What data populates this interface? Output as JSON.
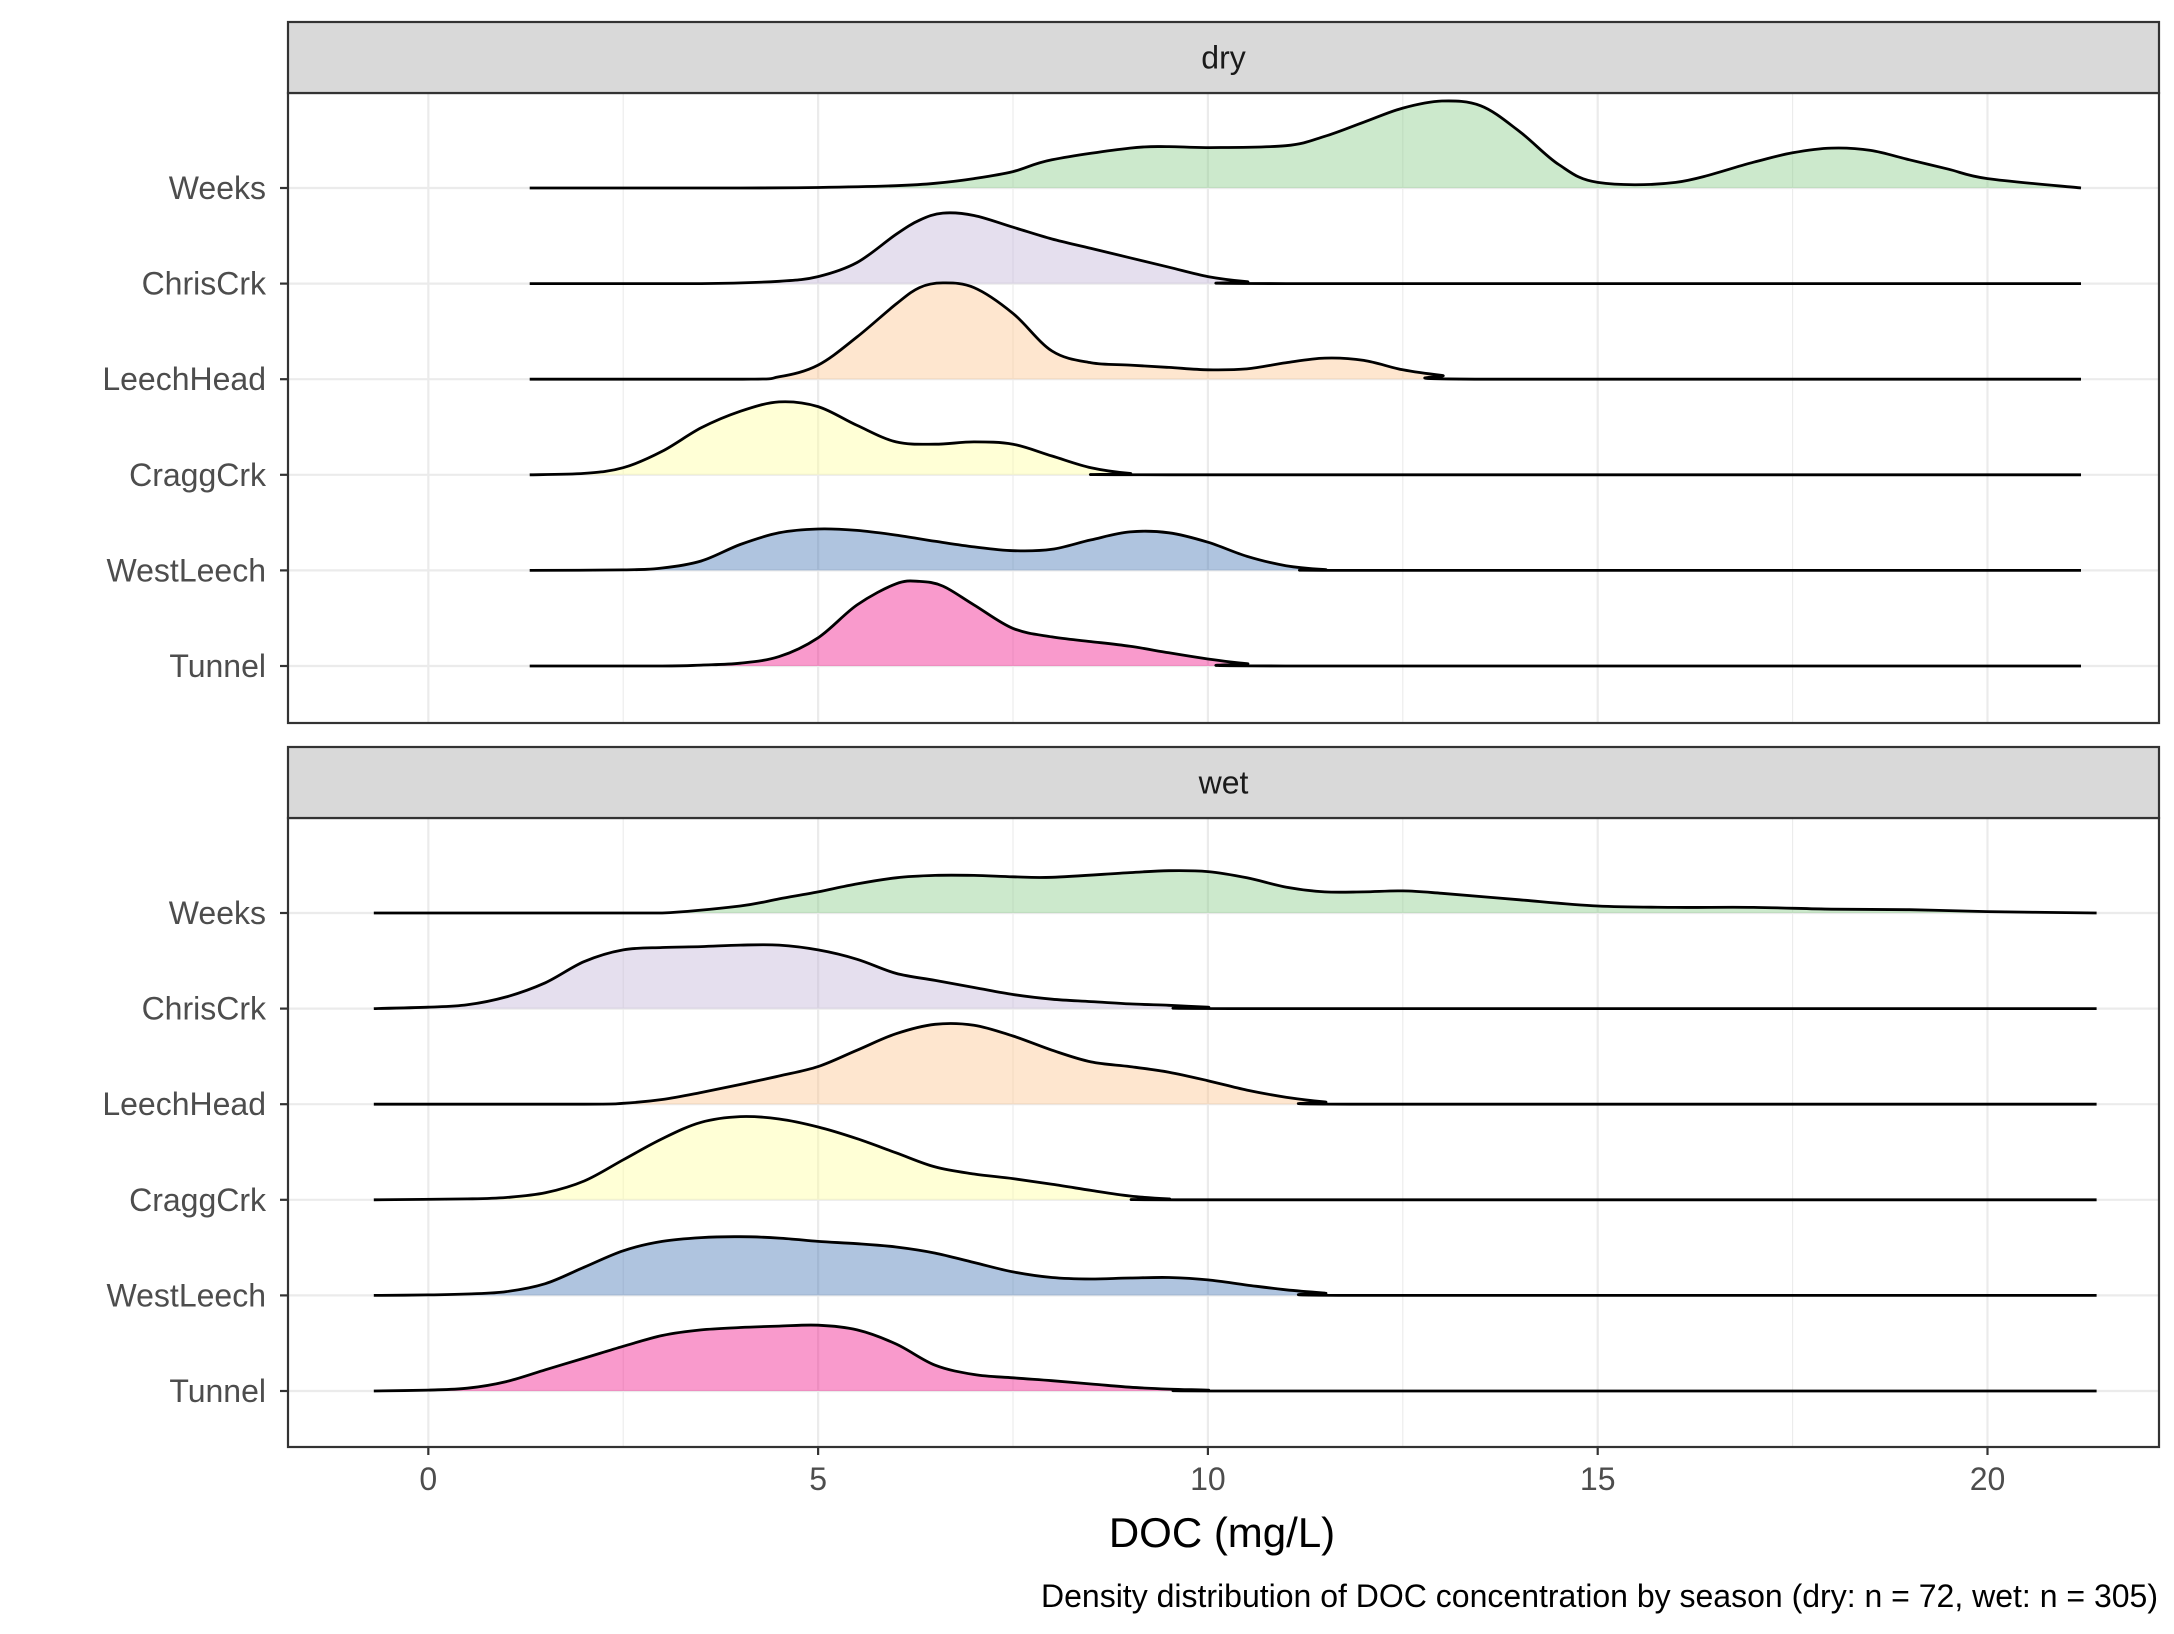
{
  "chart_data": {
    "type": "ridgeline-density",
    "xlabel": "DOC (mg/L)",
    "caption": "Density distribution of DOC concentration by season (dry: n = 72, wet: n = 305)",
    "xlim": [
      -1.8,
      22.2
    ],
    "x_ticks": [
      0,
      5,
      10,
      15,
      20
    ],
    "grid": true,
    "categories": [
      "Weeks",
      "ChrisCrk",
      "LeechHead",
      "CraggCrk",
      "WestLeech",
      "Tunnel"
    ],
    "colors": {
      "Weeks": "#7fc97f",
      "ChrisCrk": "#beaed4",
      "LeechHead": "#fdc086",
      "CraggCrk": "#ffff99",
      "WestLeech": "#386cb0",
      "Tunnel": "#f0027f"
    },
    "fill_opacity": 0.4,
    "ridge_scale_units": "height relative to row spacing",
    "panels": [
      {
        "label": "dry",
        "x_range": [
          1.3,
          21.2
        ],
        "series": [
          {
            "name": "Weeks",
            "x": [
              1.3,
              4,
              5,
              6,
              6.5,
              7,
              7.5,
              8,
              9,
              9.5,
              10,
              11,
              11.5,
              12,
              12.5,
              13,
              13.5,
              14,
              14.5,
              15,
              16,
              17,
              17.5,
              18,
              18.5,
              19,
              19.5,
              20,
              21.2
            ],
            "y": [
              0,
              0,
              0.01,
              0.05,
              0.1,
              0.2,
              0.35,
              0.6,
              0.85,
              0.88,
              0.86,
              0.9,
              1.1,
              1.4,
              1.7,
              1.85,
              1.75,
              1.2,
              0.5,
              0.12,
              0.12,
              0.55,
              0.75,
              0.85,
              0.8,
              0.6,
              0.4,
              0.2,
              0
            ]
          },
          {
            "name": "ChrisCrk",
            "x": [
              1.3,
              3.5,
              4.5,
              5,
              5.5,
              6,
              6.3,
              6.6,
              7,
              7.5,
              8,
              8.5,
              9,
              9.5,
              10,
              10.5,
              11,
              21.2
            ],
            "y": [
              0,
              0,
              0.05,
              0.15,
              0.45,
              1.05,
              1.35,
              1.5,
              1.45,
              1.2,
              0.95,
              0.75,
              0.55,
              0.35,
              0.15,
              0.04,
              0,
              0
            ]
          },
          {
            "name": "LeechHead",
            "x": [
              1.3,
              4,
              4.5,
              5,
              5.5,
              6,
              6.3,
              6.6,
              7,
              7.5,
              8,
              8.5,
              9,
              9.5,
              10,
              10.5,
              11,
              11.5,
              12,
              12.5,
              13,
              13.5,
              21.2
            ],
            "y": [
              0,
              0,
              0.05,
              0.3,
              0.9,
              1.6,
              1.95,
              2.05,
              1.95,
              1.4,
              0.6,
              0.35,
              0.3,
              0.25,
              0.2,
              0.22,
              0.35,
              0.45,
              0.4,
              0.2,
              0.08,
              0,
              0
            ]
          },
          {
            "name": "CraggCrk",
            "x": [
              1.3,
              2,
              2.5,
              3,
              3.5,
              4,
              4.5,
              5,
              5.5,
              6,
              6.5,
              7,
              7.5,
              8,
              8.5,
              9,
              9.5,
              21.2
            ],
            "y": [
              0,
              0.03,
              0.15,
              0.5,
              1.0,
              1.35,
              1.55,
              1.45,
              1.05,
              0.7,
              0.65,
              0.7,
              0.65,
              0.4,
              0.15,
              0.03,
              0,
              0
            ]
          },
          {
            "name": "WestLeech",
            "x": [
              1.3,
              2.5,
              3,
              3.5,
              4,
              4.5,
              5,
              5.5,
              6,
              6.5,
              7,
              7.5,
              8,
              8.5,
              9,
              9.5,
              10,
              10.5,
              11,
              11.5,
              12,
              21.2
            ],
            "y": [
              0,
              0.01,
              0.05,
              0.2,
              0.55,
              0.8,
              0.88,
              0.85,
              0.75,
              0.62,
              0.5,
              0.42,
              0.45,
              0.65,
              0.82,
              0.8,
              0.6,
              0.3,
              0.1,
              0.02,
              0,
              0
            ]
          },
          {
            "name": "Tunnel",
            "x": [
              1.3,
              3,
              3.5,
              4,
              4.5,
              5,
              5.5,
              6,
              6.3,
              6.6,
              7,
              7.5,
              8,
              8.5,
              9,
              9.5,
              10,
              10.5,
              11,
              21.2
            ],
            "y": [
              0,
              0,
              0.02,
              0.06,
              0.2,
              0.6,
              1.3,
              1.75,
              1.8,
              1.7,
              1.3,
              0.8,
              0.62,
              0.52,
              0.42,
              0.28,
              0.15,
              0.05,
              0,
              0
            ]
          }
        ]
      },
      {
        "label": "wet",
        "x_range": [
          -0.7,
          21.4
        ],
        "series": [
          {
            "name": "Weeks",
            "x": [
              -0.7,
              2,
              3,
              4,
              4.5,
              5,
              5.5,
              6,
              6.5,
              7,
              7.5,
              8,
              9,
              9.5,
              10,
              10.5,
              11,
              11.5,
              12,
              12.5,
              13,
              14,
              15,
              16,
              17,
              18,
              19,
              20,
              21.4
            ],
            "y": [
              0,
              0,
              0,
              0.15,
              0.3,
              0.45,
              0.62,
              0.75,
              0.8,
              0.8,
              0.77,
              0.76,
              0.86,
              0.9,
              0.88,
              0.75,
              0.55,
              0.45,
              0.45,
              0.47,
              0.42,
              0.28,
              0.15,
              0.12,
              0.12,
              0.08,
              0.07,
              0.03,
              0
            ]
          },
          {
            "name": "ChrisCrk",
            "x": [
              -0.7,
              0,
              0.5,
              1,
              1.5,
              2,
              2.5,
              3,
              3.5,
              4,
              4.5,
              5,
              5.5,
              6,
              6.5,
              7,
              7.5,
              8,
              8.5,
              9,
              9.5,
              10,
              10.5,
              21.4
            ],
            "y": [
              0,
              0.03,
              0.08,
              0.25,
              0.55,
              1.0,
              1.25,
              1.3,
              1.32,
              1.35,
              1.35,
              1.25,
              1.05,
              0.75,
              0.6,
              0.45,
              0.3,
              0.2,
              0.15,
              0.1,
              0.07,
              0.03,
              0,
              0
            ]
          },
          {
            "name": "LeechHead",
            "x": [
              -0.7,
              2,
              2.5,
              3,
              3.5,
              4,
              4.5,
              5,
              5.5,
              6,
              6.5,
              7,
              7.5,
              8,
              8.5,
              9,
              9.5,
              10,
              10.5,
              11,
              11.5,
              12,
              21.4
            ],
            "y": [
              0,
              0,
              0.02,
              0.1,
              0.25,
              0.42,
              0.6,
              0.8,
              1.15,
              1.5,
              1.7,
              1.68,
              1.45,
              1.15,
              0.9,
              0.8,
              0.68,
              0.5,
              0.3,
              0.15,
              0.05,
              0,
              0
            ]
          },
          {
            "name": "CraggCrk",
            "x": [
              -0.7,
              0.5,
              1,
              1.5,
              2,
              2.5,
              3,
              3.5,
              4,
              4.5,
              5,
              5.5,
              6,
              6.5,
              7,
              7.5,
              8,
              8.5,
              9,
              9.5,
              10,
              21.4
            ],
            "y": [
              0,
              0.02,
              0.05,
              0.15,
              0.4,
              0.85,
              1.3,
              1.65,
              1.77,
              1.72,
              1.55,
              1.3,
              1.0,
              0.7,
              0.55,
              0.45,
              0.33,
              0.2,
              0.08,
              0.02,
              0,
              0
            ]
          },
          {
            "name": "WestLeech",
            "x": [
              -0.7,
              0,
              0.5,
              1,
              1.5,
              2,
              2.5,
              3,
              3.5,
              4,
              4.5,
              5,
              5.5,
              6,
              6.5,
              7,
              7.5,
              8,
              8.5,
              9,
              9.5,
              10,
              10.5,
              11,
              11.5,
              12,
              21.4
            ],
            "y": [
              0,
              0.01,
              0.03,
              0.08,
              0.25,
              0.6,
              0.95,
              1.15,
              1.23,
              1.25,
              1.22,
              1.15,
              1.1,
              1.03,
              0.9,
              0.7,
              0.5,
              0.38,
              0.35,
              0.37,
              0.38,
              0.33,
              0.22,
              0.12,
              0.05,
              0,
              0
            ]
          },
          {
            "name": "Tunnel",
            "x": [
              -0.7,
              0,
              0.5,
              1,
              1.5,
              2,
              2.5,
              3,
              3.5,
              4,
              4.5,
              5,
              5.5,
              6,
              6.5,
              7,
              7.5,
              8,
              8.5,
              9,
              9.5,
              10,
              10.5,
              21.4
            ],
            "y": [
              0,
              0.02,
              0.06,
              0.2,
              0.45,
              0.7,
              0.95,
              1.18,
              1.3,
              1.35,
              1.38,
              1.4,
              1.3,
              1.0,
              0.55,
              0.35,
              0.28,
              0.22,
              0.15,
              0.08,
              0.04,
              0.02,
              0,
              0
            ]
          }
        ]
      }
    ]
  }
}
